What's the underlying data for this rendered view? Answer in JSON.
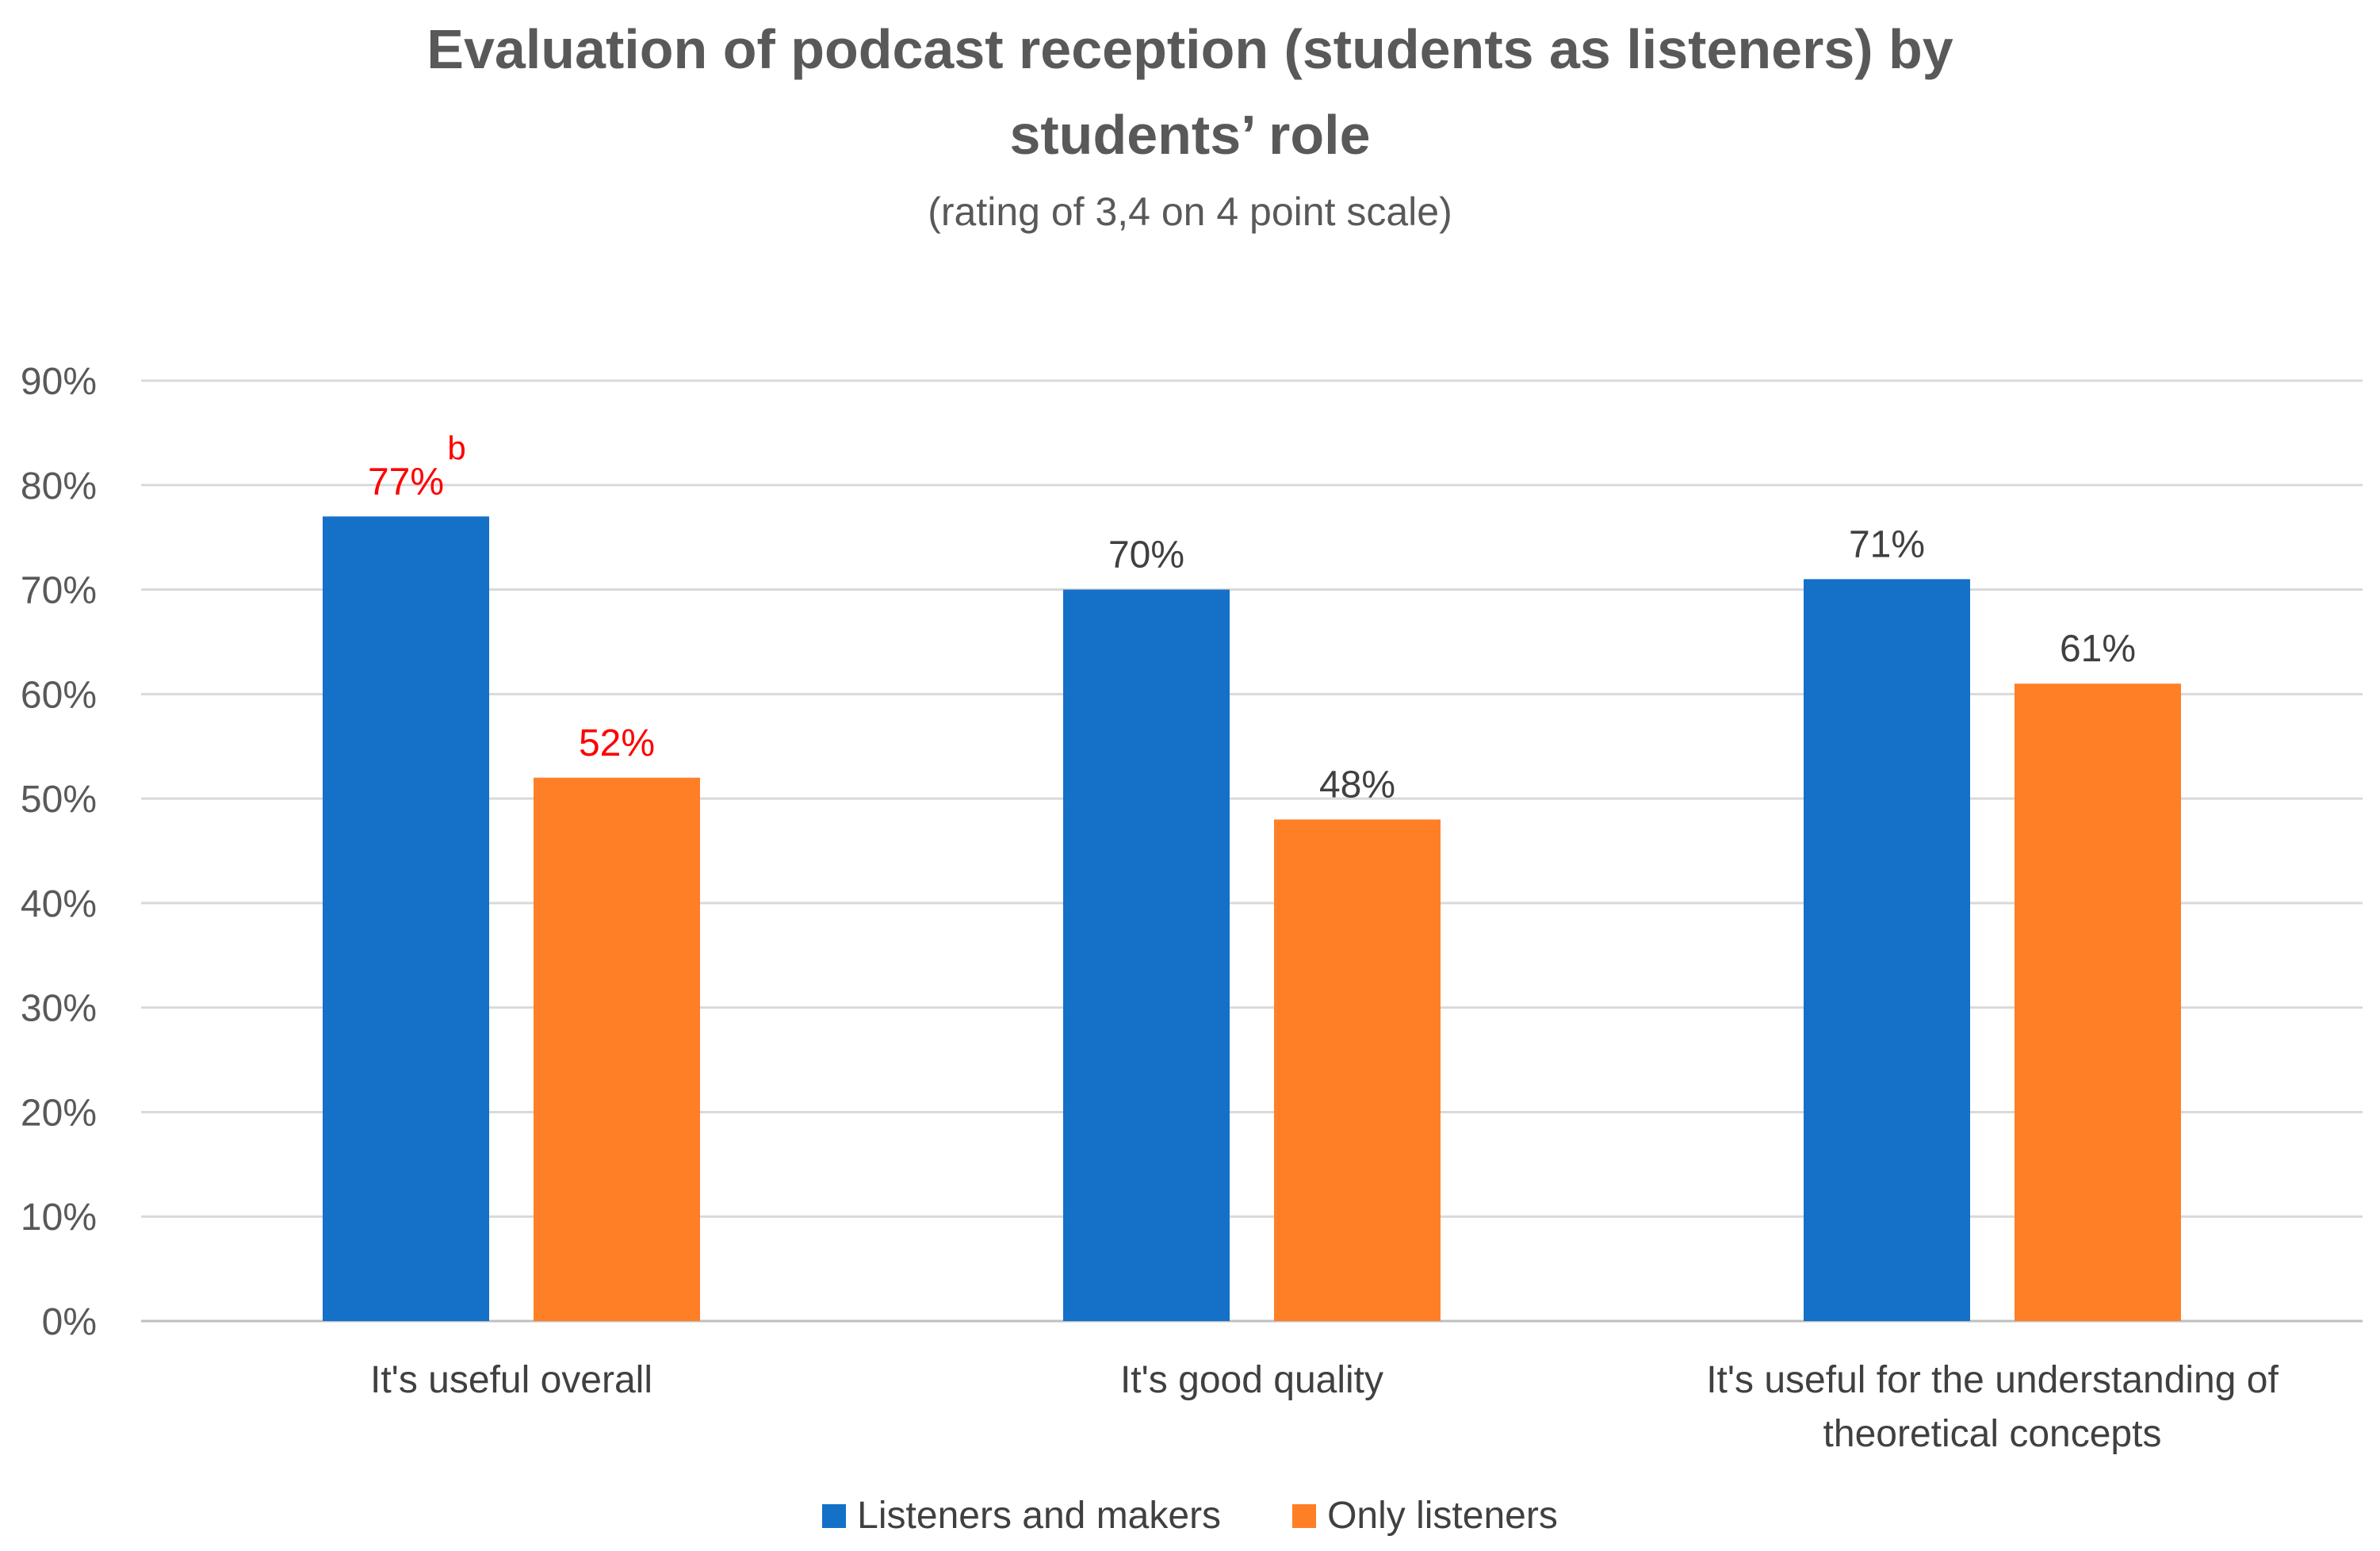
{
  "chart_data": {
    "type": "bar",
    "title_line1": "Evaluation of podcast reception (students as listeners) by",
    "title_line2": "students’ role",
    "subtitle": "(rating of 3,4 on 4 point scale)",
    "categories": [
      [
        "It's useful overall"
      ],
      [
        "It's good quality"
      ],
      [
        "It's useful for the understanding of",
        "theoretical concepts"
      ]
    ],
    "series": [
      {
        "name": "Listeners and makers",
        "color": "#1570C8",
        "values": [
          77,
          70,
          71
        ],
        "labels": [
          "77%",
          "70%",
          "71%"
        ],
        "label_colors": [
          "#FF0000",
          "#404040",
          "#404040"
        ],
        "superscripts": [
          "b",
          "",
          ""
        ]
      },
      {
        "name": "Only listeners",
        "color": "#FF7F27",
        "values": [
          52,
          48,
          61
        ],
        "labels": [
          "52%",
          "48%",
          "61%"
        ],
        "label_colors": [
          "#FF0000",
          "#404040",
          "#404040"
        ],
        "superscripts": [
          "",
          "",
          ""
        ]
      }
    ],
    "ylim": [
      0,
      90
    ],
    "yticks": [
      0,
      10,
      20,
      30,
      40,
      50,
      60,
      70,
      80,
      90
    ],
    "ytick_labels": [
      "0%",
      "10%",
      "20%",
      "30%",
      "40%",
      "50%",
      "60%",
      "70%",
      "80%",
      "90%"
    ],
    "grid": true,
    "legend": "bottom"
  }
}
